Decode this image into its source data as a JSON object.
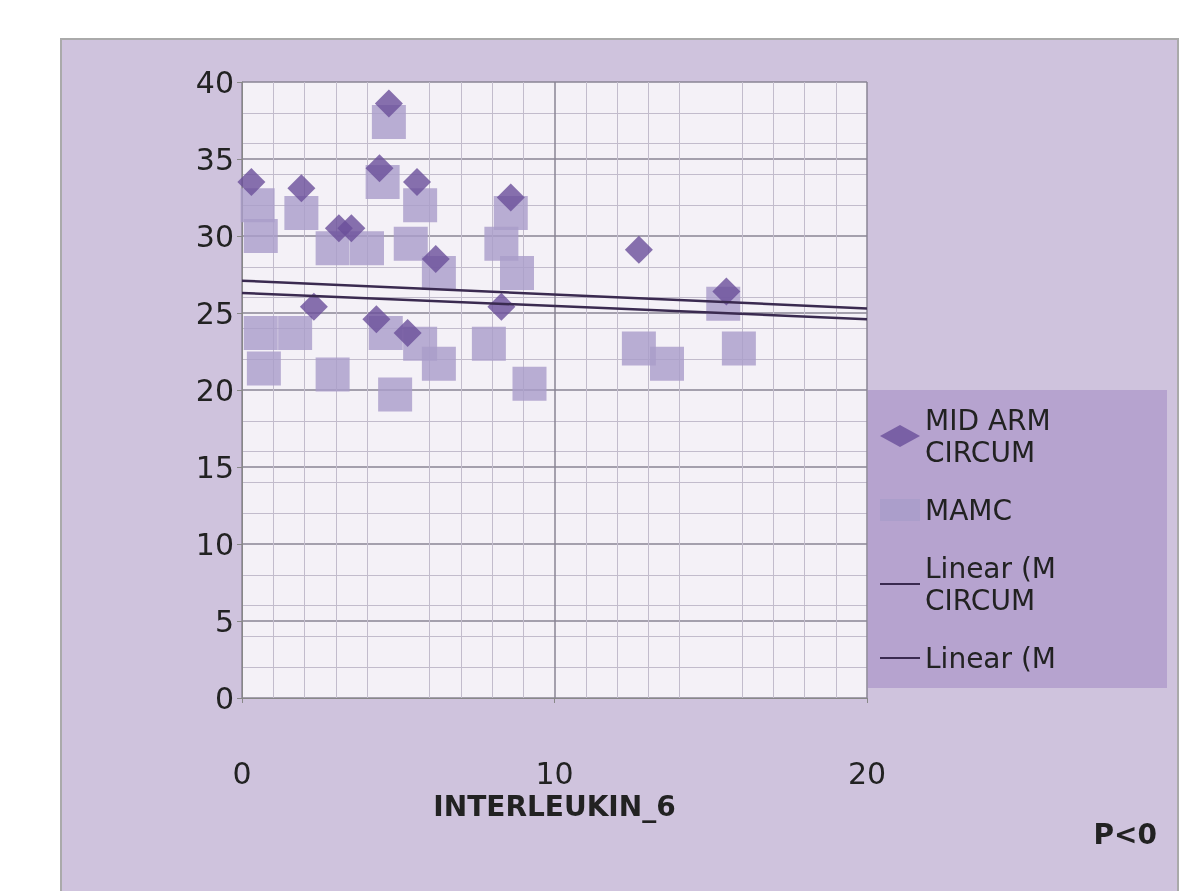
{
  "chart_data": {
    "type": "scatter",
    "xlabel": "INTERLEUKIN_6",
    "annotations": [
      "P<0"
    ],
    "xlim": [
      0,
      20
    ],
    "xticks": [
      0,
      10,
      20
    ],
    "ylim": [
      0,
      40
    ],
    "yticks": [
      0,
      5,
      10,
      15,
      20,
      25,
      30,
      35,
      40
    ],
    "grid": true,
    "legend": "right",
    "series": [
      {
        "name": "MID ARM CIRCUM",
        "color": "#6a4f9a",
        "marker": "diamond",
        "x": [
          0.3,
          1.9,
          3.1,
          3.5,
          4.7,
          4.4,
          5.6,
          6.2,
          8.6,
          4.3,
          5.3,
          8.3,
          2.3,
          12.7,
          15.5
        ],
        "values": [
          33.5,
          33.1,
          30.5,
          30.5,
          38.6,
          34.4,
          33.5,
          28.5,
          32.5,
          24.6,
          23.7,
          25.4,
          25.4,
          29.1,
          26.4
        ]
      },
      {
        "name": "MAMC",
        "color": "#a99cc9",
        "marker": "square",
        "x": [
          0.5,
          0.6,
          1.9,
          2.9,
          4.0,
          4.7,
          4.5,
          5.7,
          5.4,
          6.3,
          8.6,
          8.3,
          8.8,
          0.6,
          0.7,
          1.7,
          2.9,
          4.6,
          4.9,
          5.7,
          6.3,
          7.9,
          9.2,
          12.7,
          13.6,
          15.4,
          15.9
        ],
        "values": [
          32,
          30,
          31.5,
          29.2,
          29.2,
          37.4,
          33.5,
          32,
          29.5,
          27.6,
          31.5,
          29.5,
          27.6,
          23.7,
          21.4,
          23.7,
          21,
          23.7,
          19.7,
          23,
          21.7,
          23,
          20.4,
          22.7,
          21.7,
          25.6,
          22.7
        ]
      },
      {
        "name": "Linear (M CIRCUM",
        "type": "line",
        "color": "#3a2a50",
        "marker": "none",
        "line_style": "solid",
        "x": [
          0,
          20
        ],
        "values": [
          27.1,
          25.3
        ]
      },
      {
        "name": "Linear (M",
        "type": "line",
        "color": "#3a2a50",
        "marker": "none",
        "line_style": "solid",
        "x": [
          0,
          20
        ],
        "values": [
          26.3,
          24.6
        ]
      }
    ]
  }
}
